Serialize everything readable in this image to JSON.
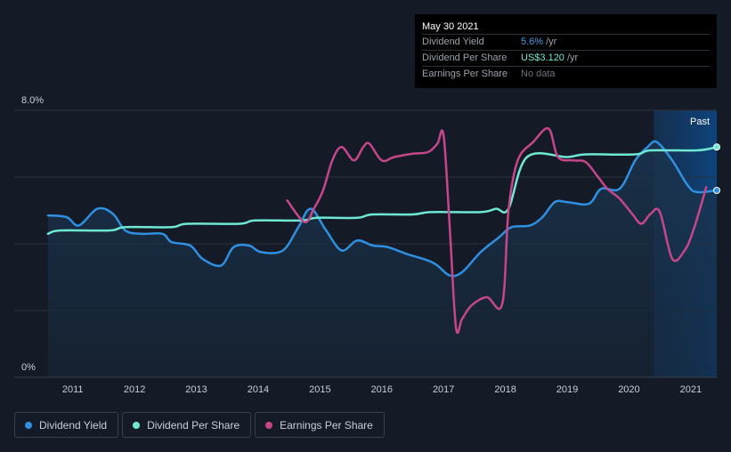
{
  "tooltip": {
    "date": "May 30 2021",
    "rows": [
      {
        "label": "Dividend Yield",
        "value": "5.6%",
        "unit": "/yr"
      },
      {
        "label": "Dividend Per Share",
        "value": "US$3.120",
        "unit": "/yr"
      },
      {
        "label": "Earnings Per Share",
        "value": "No data",
        "unit": ""
      }
    ]
  },
  "legend": [
    {
      "label": "Dividend Yield",
      "color": "#2f8fe0"
    },
    {
      "label": "Dividend Per Share",
      "color": "#6fe8d3"
    },
    {
      "label": "Earnings Per Share",
      "color": "#c6468a"
    }
  ],
  "chart_data": {
    "type": "line",
    "y_top_label": "8.0%",
    "y_bottom_label": "0%",
    "past_label": "Past",
    "x_ticks": [
      "2011",
      "2012",
      "2013",
      "2014",
      "2015",
      "2016",
      "2017",
      "2018",
      "2019",
      "2020",
      "2021"
    ],
    "ylim": [
      0,
      8
    ],
    "xlim": [
      2010.5,
      2021.42
    ],
    "forecast_region_start": 2020.4,
    "grid": true,
    "legend_position": "bottom-left",
    "series": [
      {
        "name": "Dividend Yield",
        "color": "#2f8fe0",
        "fill": true,
        "points": [
          [
            2010.6,
            4.85
          ],
          [
            2010.9,
            4.8
          ],
          [
            2011.1,
            4.55
          ],
          [
            2011.4,
            5.05
          ],
          [
            2011.65,
            4.9
          ],
          [
            2011.85,
            4.4
          ],
          [
            2012.1,
            4.3
          ],
          [
            2012.45,
            4.3
          ],
          [
            2012.6,
            4.05
          ],
          [
            2012.9,
            3.95
          ],
          [
            2013.1,
            3.55
          ],
          [
            2013.4,
            3.35
          ],
          [
            2013.6,
            3.9
          ],
          [
            2013.85,
            3.95
          ],
          [
            2014.05,
            3.75
          ],
          [
            2014.4,
            3.8
          ],
          [
            2014.65,
            4.5
          ],
          [
            2014.85,
            5.05
          ],
          [
            2015.1,
            4.4
          ],
          [
            2015.35,
            3.8
          ],
          [
            2015.6,
            4.1
          ],
          [
            2015.85,
            3.95
          ],
          [
            2016.1,
            3.9
          ],
          [
            2016.4,
            3.7
          ],
          [
            2016.75,
            3.5
          ],
          [
            2016.9,
            3.35
          ],
          [
            2017.1,
            3.05
          ],
          [
            2017.3,
            3.15
          ],
          [
            2017.6,
            3.75
          ],
          [
            2017.9,
            4.2
          ],
          [
            2018.1,
            4.5
          ],
          [
            2018.4,
            4.55
          ],
          [
            2018.6,
            4.8
          ],
          [
            2018.8,
            5.25
          ],
          [
            2019.0,
            5.25
          ],
          [
            2019.35,
            5.2
          ],
          [
            2019.55,
            5.65
          ],
          [
            2019.85,
            5.65
          ],
          [
            2020.1,
            6.5
          ],
          [
            2020.3,
            6.9
          ],
          [
            2020.45,
            7.05
          ],
          [
            2020.7,
            6.5
          ],
          [
            2020.95,
            5.75
          ],
          [
            2021.1,
            5.55
          ],
          [
            2021.42,
            5.6
          ]
        ]
      },
      {
        "name": "Dividend Per Share",
        "color": "#6fe8d3",
        "fill": false,
        "points": [
          [
            2010.6,
            4.3
          ],
          [
            2010.8,
            4.4
          ],
          [
            2011.6,
            4.4
          ],
          [
            2011.85,
            4.5
          ],
          [
            2012.6,
            4.5
          ],
          [
            2012.85,
            4.6
          ],
          [
            2013.7,
            4.6
          ],
          [
            2013.95,
            4.7
          ],
          [
            2014.7,
            4.7
          ],
          [
            2014.95,
            4.78
          ],
          [
            2015.6,
            4.78
          ],
          [
            2015.85,
            4.88
          ],
          [
            2016.5,
            4.88
          ],
          [
            2016.8,
            4.95
          ],
          [
            2017.6,
            4.95
          ],
          [
            2017.85,
            5.05
          ],
          [
            2018.05,
            5.05
          ],
          [
            2018.35,
            6.6
          ],
          [
            2019.0,
            6.6
          ],
          [
            2019.3,
            6.68
          ],
          [
            2020.1,
            6.68
          ],
          [
            2020.35,
            6.8
          ],
          [
            2021.1,
            6.8
          ],
          [
            2021.42,
            6.9
          ]
        ]
      },
      {
        "name": "Earnings Per Share",
        "color": "#c6468a",
        "fill": false,
        "points": [
          [
            2014.47,
            5.3
          ],
          [
            2014.75,
            4.65
          ],
          [
            2014.9,
            5.05
          ],
          [
            2015.05,
            5.6
          ],
          [
            2015.2,
            6.5
          ],
          [
            2015.35,
            6.9
          ],
          [
            2015.55,
            6.5
          ],
          [
            2015.7,
            6.9
          ],
          [
            2015.8,
            7.0
          ],
          [
            2016.0,
            6.5
          ],
          [
            2016.2,
            6.6
          ],
          [
            2016.5,
            6.7
          ],
          [
            2016.75,
            6.75
          ],
          [
            2016.9,
            7.0
          ],
          [
            2017.0,
            7.25
          ],
          [
            2017.1,
            4.5
          ],
          [
            2017.2,
            1.5
          ],
          [
            2017.3,
            1.75
          ],
          [
            2017.45,
            2.15
          ],
          [
            2017.7,
            2.4
          ],
          [
            2017.95,
            2.2
          ],
          [
            2018.05,
            5.0
          ],
          [
            2018.2,
            6.5
          ],
          [
            2018.45,
            7.05
          ],
          [
            2018.7,
            7.45
          ],
          [
            2018.85,
            6.6
          ],
          [
            2019.1,
            6.5
          ],
          [
            2019.3,
            6.45
          ],
          [
            2019.5,
            6.0
          ],
          [
            2019.65,
            5.65
          ],
          [
            2019.85,
            5.35
          ],
          [
            2020.05,
            4.9
          ],
          [
            2020.2,
            4.6
          ],
          [
            2020.35,
            4.9
          ],
          [
            2020.5,
            4.95
          ],
          [
            2020.7,
            3.55
          ],
          [
            2020.9,
            3.8
          ],
          [
            2021.05,
            4.45
          ],
          [
            2021.25,
            5.7
          ]
        ]
      }
    ]
  }
}
